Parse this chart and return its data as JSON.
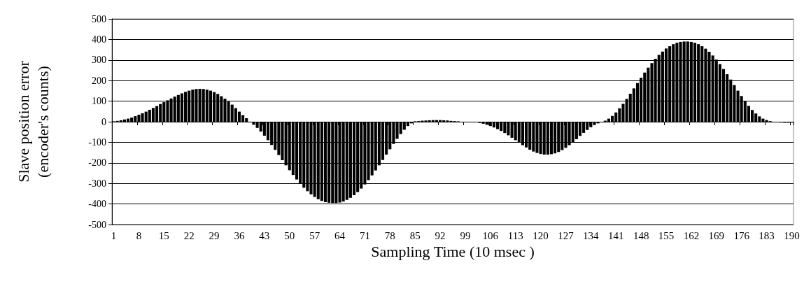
{
  "chart_data": {
    "type": "bar",
    "xlabel": "Sampling Time (10 msec )",
    "ylabel": "Slave position error\n(encoder's counts)",
    "categories": [
      "1",
      null,
      null,
      null,
      null,
      null,
      null,
      "8",
      null,
      null,
      null,
      null,
      null,
      null,
      "15",
      null,
      null,
      null,
      null,
      null,
      null,
      "22",
      null,
      null,
      null,
      null,
      null,
      null,
      "29",
      null,
      null,
      null,
      null,
      null,
      null,
      "36",
      null,
      null,
      null,
      null,
      null,
      null,
      "43",
      null,
      null,
      null,
      null,
      null,
      null,
      "50",
      null,
      null,
      null,
      null,
      null,
      null,
      "57",
      null,
      null,
      null,
      null,
      null,
      null,
      "64",
      null,
      null,
      null,
      null,
      null,
      null,
      "71",
      null,
      null,
      null,
      null,
      null,
      null,
      "78",
      null,
      null,
      null,
      null,
      null,
      null,
      "85",
      null,
      null,
      null,
      null,
      null,
      null,
      "92",
      null,
      null,
      null,
      null,
      null,
      null,
      "99",
      null,
      null,
      null,
      null,
      null,
      null,
      "106",
      null,
      null,
      null,
      null,
      null,
      null,
      "113",
      null,
      null,
      null,
      null,
      null,
      null,
      "120",
      null,
      null,
      null,
      null,
      null,
      null,
      "127",
      null,
      null,
      null,
      null,
      null,
      null,
      "134",
      null,
      null,
      null,
      null,
      null,
      null,
      "141",
      null,
      null,
      null,
      null,
      null,
      null,
      "148",
      null,
      null,
      null,
      null,
      null,
      null,
      "155",
      null,
      null,
      null,
      null,
      null,
      null,
      "162",
      null,
      null,
      null,
      null,
      null,
      null,
      "169",
      null,
      null,
      null,
      null,
      null,
      null,
      "176",
      null,
      null,
      null,
      null,
      null,
      null,
      "183",
      null,
      null,
      null,
      null,
      null,
      null,
      "190"
    ],
    "values": [
      2,
      4,
      7,
      11,
      15,
      20,
      27,
      34,
      41,
      49,
      58,
      67,
      76,
      86,
      95,
      104,
      113,
      122,
      130,
      138,
      145,
      151,
      156,
      159,
      160,
      159,
      156,
      151,
      144,
      135,
      124,
      112,
      98,
      83,
      66,
      49,
      32,
      17,
      0,
      -15,
      -30,
      -48,
      -68,
      -90,
      -113,
      -137,
      -162,
      -187,
      -212,
      -236,
      -259,
      -281,
      -302,
      -321,
      -338,
      -353,
      -366,
      -377,
      -385,
      -391,
      -394,
      -395,
      -395,
      -393,
      -388,
      -380,
      -370,
      -357,
      -342,
      -325,
      -305,
      -284,
      -261,
      -237,
      -212,
      -186,
      -160,
      -134,
      -108,
      -83,
      -60,
      -39,
      -21,
      -8,
      2,
      3,
      5,
      6,
      7,
      8,
      8,
      8,
      7,
      6,
      4,
      3,
      2,
      0,
      0,
      -1,
      -1,
      -3,
      -6,
      -10,
      -15,
      -21,
      -28,
      -36,
      -45,
      -55,
      -66,
      -78,
      -90,
      -102,
      -114,
      -125,
      -136,
      -145,
      -152,
      -157,
      -160,
      -160,
      -158,
      -154,
      -147,
      -138,
      -127,
      -114,
      -100,
      -85,
      -69,
      -54,
      -40,
      -27,
      -16,
      -8,
      -3,
      5,
      15,
      28,
      45,
      65,
      87,
      111,
      136,
      162,
      188,
      214,
      239,
      263,
      285,
      306,
      325,
      341,
      356,
      367,
      377,
      384,
      388,
      390,
      390,
      388,
      384,
      377,
      367,
      355,
      340,
      322,
      302,
      280,
      256,
      231,
      205,
      178,
      151,
      125,
      100,
      77,
      57,
      40,
      26,
      15,
      8,
      3,
      -1,
      -3,
      -4,
      -5,
      -5,
      -4
    ],
    "color": "#000000",
    "ylim": [
      -500,
      500
    ],
    "yticks": [
      -500,
      -400,
      -300,
      -200,
      -100,
      0,
      100,
      200,
      300,
      400,
      500
    ],
    "grid": "y"
  }
}
